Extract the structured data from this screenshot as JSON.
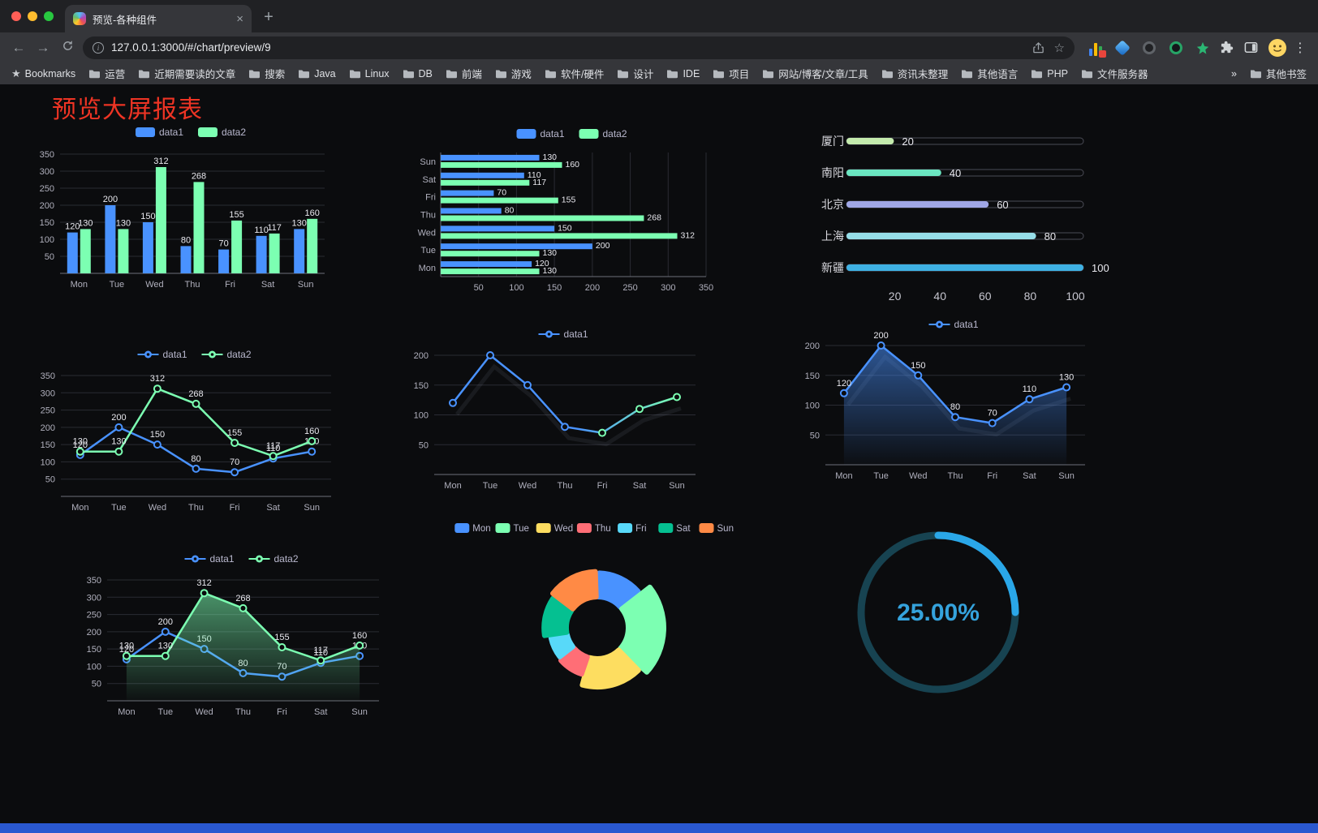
{
  "browser": {
    "tab": {
      "title": "预览-各种组件",
      "close_icon": "×"
    },
    "new_tab_icon": "+",
    "nav": {
      "back": "←",
      "forward": "→"
    },
    "address": {
      "info_icon": "i",
      "url": "127.0.0.1:3000/#/chart/preview/9",
      "bookmark_icon": "☆"
    },
    "extension_icons": [
      "stats-icon",
      "kite-icon",
      "disc-icon",
      "green-ring-icon",
      "green-star-icon"
    ],
    "bookmarks_left": [
      {
        "icon": "star",
        "label": "Bookmarks"
      },
      {
        "icon": "folder",
        "label": "运营"
      },
      {
        "icon": "folder",
        "label": "近期需要读的文章"
      },
      {
        "icon": "folder",
        "label": "搜索"
      },
      {
        "icon": "folder",
        "label": "Java"
      },
      {
        "icon": "folder",
        "label": "Linux"
      },
      {
        "icon": "folder",
        "label": "DB"
      },
      {
        "icon": "folder",
        "label": "前端"
      },
      {
        "icon": "folder",
        "label": "游戏"
      },
      {
        "icon": "folder",
        "label": "软件/硬件"
      },
      {
        "icon": "folder",
        "label": "设计"
      },
      {
        "icon": "folder",
        "label": "IDE"
      },
      {
        "icon": "folder",
        "label": "项目"
      },
      {
        "icon": "folder",
        "label": "网站/博客/文章/工具"
      },
      {
        "icon": "folder",
        "label": "资讯未整理"
      },
      {
        "icon": "folder",
        "label": "其他语言"
      },
      {
        "icon": "folder",
        "label": "PHP"
      },
      {
        "icon": "folder",
        "label": "文件服务器"
      }
    ],
    "bookmarks_overflow": "»",
    "bookmarks_right": {
      "icon": "folder",
      "label": "其他书签"
    }
  },
  "page": {
    "title": "预览大屏报表",
    "title_color": "#ee3424",
    "background": "#0b0c0e",
    "footer_color": "#2a58d0"
  },
  "chart_data": [
    {
      "id": "grouped-bar",
      "type": "bar",
      "categories": [
        "Mon",
        "Tue",
        "Wed",
        "Thu",
        "Fri",
        "Sat",
        "Sun"
      ],
      "series": [
        {
          "name": "data1",
          "color": "#4992ff",
          "values": [
            120,
            200,
            150,
            80,
            70,
            110,
            130
          ]
        },
        {
          "name": "data2",
          "color": "#7cffb2",
          "values": [
            130,
            130,
            312,
            268,
            155,
            117,
            160
          ]
        }
      ],
      "ylim": [
        0,
        350
      ],
      "ytick_step": 50,
      "labels": true,
      "legend_position": "top",
      "grid": true
    },
    {
      "id": "horizontal-bar",
      "type": "bar-h",
      "categories": [
        "Mon",
        "Tue",
        "Wed",
        "Thu",
        "Fri",
        "Sat",
        "Sun"
      ],
      "series": [
        {
          "name": "data1",
          "color": "#4992ff",
          "values": [
            120,
            200,
            150,
            80,
            70,
            110,
            130
          ]
        },
        {
          "name": "data2",
          "color": "#7cffb2",
          "values": [
            130,
            130,
            312,
            268,
            155,
            117,
            160
          ]
        }
      ],
      "xlim": [
        0,
        350
      ],
      "xtick_step": 50,
      "labels": true,
      "legend_position": "top",
      "grid": true
    },
    {
      "id": "city-progress",
      "type": "capsule",
      "items": [
        {
          "label": "厦门",
          "value": 20,
          "color": "#c4ebad"
        },
        {
          "label": "南阳",
          "value": 40,
          "color": "#6be6c1"
        },
        {
          "label": "北京",
          "value": 60,
          "color": "#a0a7e6"
        },
        {
          "label": "上海",
          "value": 80,
          "color": "#96dee8"
        },
        {
          "label": "新疆",
          "value": 100,
          "color": "#3fb1e3"
        }
      ],
      "xlim": [
        0,
        100
      ],
      "xticks": [
        0,
        20,
        40,
        60,
        80,
        100
      ]
    },
    {
      "id": "line-two-series",
      "type": "line",
      "categories": [
        "Mon",
        "Tue",
        "Wed",
        "Thu",
        "Fri",
        "Sat",
        "Sun"
      ],
      "series": [
        {
          "name": "data1",
          "color": "#4992ff",
          "values": [
            120,
            200,
            150,
            80,
            70,
            110,
            130
          ]
        },
        {
          "name": "data2",
          "color": "#7cffb2",
          "values": [
            130,
            130,
            312,
            268,
            155,
            117,
            160
          ]
        }
      ],
      "ylim": [
        0,
        350
      ],
      "ytick_step": 50,
      "labels": true,
      "legend_position": "top",
      "grid": true
    },
    {
      "id": "line-gradient",
      "type": "line",
      "categories": [
        "Mon",
        "Tue",
        "Wed",
        "Thu",
        "Fri",
        "Sat",
        "Sun"
      ],
      "series": [
        {
          "name": "data1",
          "color": "#4992ff",
          "color_end": "#7cffb2",
          "gradient": true,
          "values": [
            120,
            200,
            150,
            80,
            70,
            110,
            130
          ]
        }
      ],
      "ylim": [
        0,
        200
      ],
      "ytick_step": 50,
      "labels": false,
      "legend_position": "top",
      "grid": true
    },
    {
      "id": "line-area",
      "type": "line",
      "categories": [
        "Mon",
        "Tue",
        "Wed",
        "Thu",
        "Fri",
        "Sat",
        "Sun"
      ],
      "series": [
        {
          "name": "data1",
          "color": "#4992ff",
          "area": true,
          "values": [
            120,
            200,
            150,
            80,
            70,
            110,
            130
          ]
        }
      ],
      "ylim": [
        0,
        200
      ],
      "ytick_step": 50,
      "labels": true,
      "legend_position": "top",
      "grid": true
    },
    {
      "id": "line-area-two-series",
      "type": "line",
      "categories": [
        "Mon",
        "Tue",
        "Wed",
        "Thu",
        "Fri",
        "Sat",
        "Sun"
      ],
      "series": [
        {
          "name": "data1",
          "color": "#4992ff",
          "values": [
            120,
            200,
            150,
            80,
            70,
            110,
            130
          ]
        },
        {
          "name": "data2",
          "color": "#7cffb2",
          "area": true,
          "values": [
            130,
            130,
            312,
            268,
            155,
            117,
            160
          ]
        }
      ],
      "ylim": [
        0,
        350
      ],
      "ytick_step": 50,
      "labels": true,
      "legend_position": "top",
      "grid": true
    },
    {
      "id": "rose-pie",
      "type": "pie",
      "legend_position": "top",
      "items": [
        {
          "label": "Mon",
          "value": 120,
          "color": "#4992ff"
        },
        {
          "label": "Tue",
          "value": 200,
          "color": "#7cffb2"
        },
        {
          "label": "Wed",
          "value": 150,
          "color": "#fddd60"
        },
        {
          "label": "Thu",
          "value": 80,
          "color": "#ff6e76"
        },
        {
          "label": "Fri",
          "value": 70,
          "color": "#58d9f9"
        },
        {
          "label": "Sat",
          "value": 110,
          "color": "#05c091"
        },
        {
          "label": "Sun",
          "value": 130,
          "color": "#ff8a45"
        }
      ]
    },
    {
      "id": "gauge",
      "type": "gauge",
      "percent": 25,
      "value_label": "25.00%",
      "arc_color": "#2aa7e8",
      "track_color": "#174351",
      "text_color": "#35a3dd"
    }
  ]
}
